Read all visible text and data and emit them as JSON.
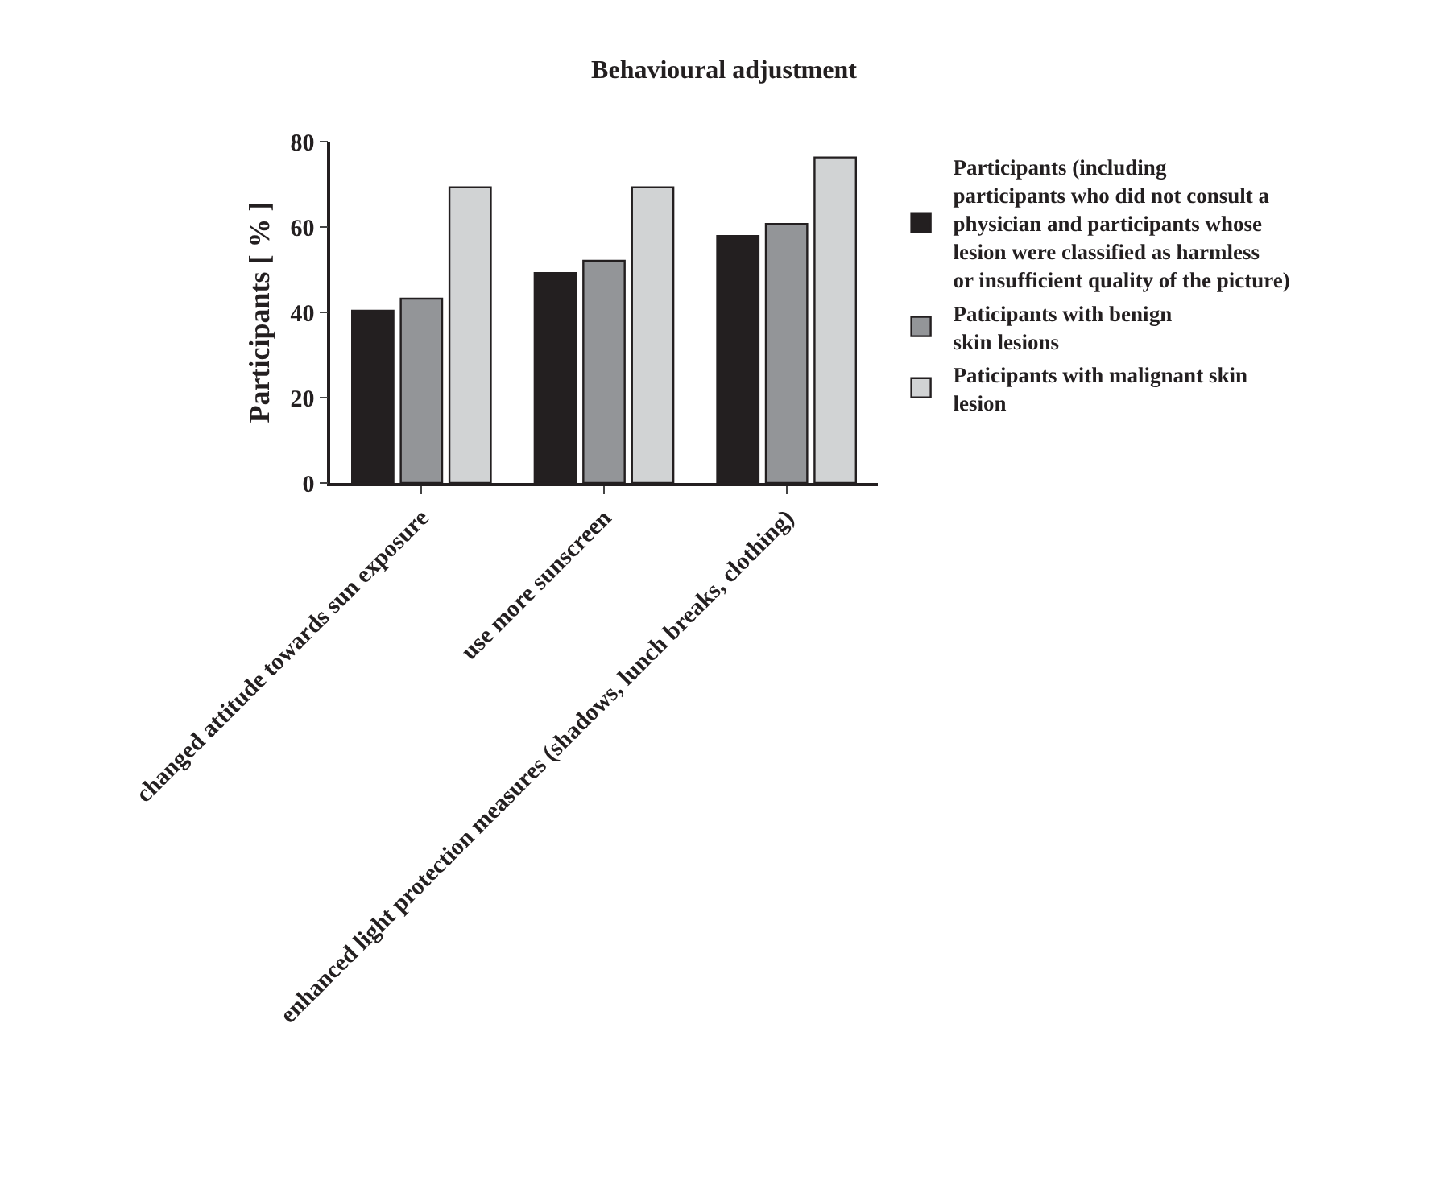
{
  "chart_data": {
    "type": "bar",
    "title": "Behavioural adjustment",
    "ylabel": "Participants [ % ]",
    "categories": [
      "changed attitude towards sun exposure",
      "use more sunscreen",
      "enhanced light protection measures (shadows, lunch breaks, clothing)"
    ],
    "series": [
      {
        "name": "Participants (including\nparticipants who did not consult a\nphysician and participants whose\nlesion were classified as harmless\nor insufficient quality of the picture)",
        "color": "#231f20",
        "values": [
          40.4,
          49.2,
          57.9
        ]
      },
      {
        "name": "Paticipants with benign\nskin lesions",
        "color": "#939598",
        "values": [
          43.2,
          52.1,
          60.7
        ]
      },
      {
        "name": "Paticipants with malignant skin\nlesion",
        "color": "#d1d3d4",
        "values": [
          69.3,
          69.3,
          76.3
        ]
      }
    ],
    "ylim": [
      0,
      80
    ],
    "yticks": [
      0,
      20,
      40,
      60,
      80
    ],
    "legend": "right"
  }
}
